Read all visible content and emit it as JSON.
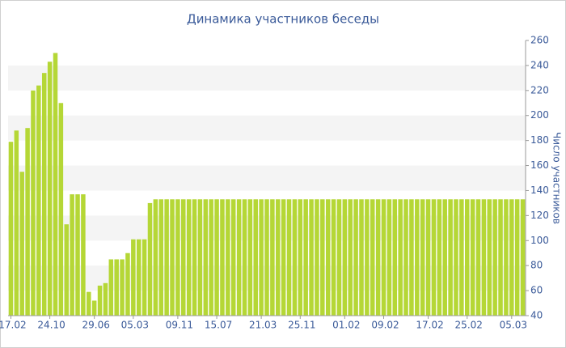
{
  "chart_data": {
    "type": "bar",
    "title": "Динамика участников беседы",
    "y_label": "Число участников",
    "categories": [
      "17.02",
      null,
      null,
      null,
      null,
      null,
      null,
      "24.10",
      null,
      null,
      null,
      null,
      null,
      null,
      null,
      "29.06",
      null,
      null,
      null,
      null,
      null,
      null,
      "05.03",
      null,
      null,
      null,
      null,
      null,
      null,
      null,
      "09.11",
      null,
      null,
      null,
      null,
      null,
      null,
      "15.07",
      null,
      null,
      null,
      null,
      null,
      null,
      null,
      "21.03",
      null,
      null,
      null,
      null,
      null,
      null,
      "25.11",
      null,
      null,
      null,
      null,
      null,
      null,
      null,
      "01.02",
      null,
      null,
      null,
      null,
      null,
      null,
      "09.02",
      null,
      null,
      null,
      null,
      null,
      null,
      null,
      "17.02",
      null,
      null,
      null,
      null,
      null,
      null,
      "25.02",
      null,
      null,
      null,
      null,
      null,
      null,
      null,
      "05.03",
      null,
      null
    ],
    "values": [
      179,
      188,
      155,
      190,
      220,
      224,
      234,
      243,
      250,
      210,
      113,
      137,
      137,
      137,
      59,
      52,
      64,
      66,
      85,
      85,
      85,
      90,
      101,
      101,
      101,
      130,
      133,
      133,
      133,
      133,
      133,
      133,
      133,
      133,
      133,
      133,
      133,
      133,
      133,
      133,
      133,
      133,
      133,
      133,
      133,
      133,
      133,
      133,
      133,
      133,
      133,
      133,
      133,
      133,
      133,
      133,
      133,
      133,
      133,
      133,
      133,
      133,
      133,
      133,
      133,
      133,
      133,
      133,
      133,
      133,
      133,
      133,
      133,
      133,
      133,
      133,
      133,
      133,
      133,
      133,
      133,
      133,
      133,
      133,
      133,
      133,
      133,
      133,
      133,
      133,
      133,
      133,
      133
    ],
    "color": "#b5d736",
    "ylim": [
      40,
      260
    ],
    "yticks": [
      40,
      60,
      80,
      100,
      120,
      140,
      160,
      180,
      200,
      220,
      240,
      260
    ],
    "grid": "bands",
    "y_axis_side": "right"
  }
}
